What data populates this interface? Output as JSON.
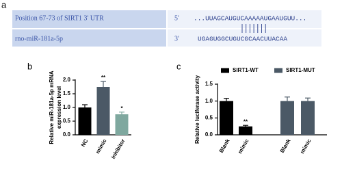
{
  "panel_a": {
    "label": "a",
    "rows": [
      {
        "name": "Position 67-73 of SIRT1 3' UTR",
        "end": "5'",
        "sequence": "...UUAGCAUGUCAAAAAUGAAUGUU..."
      },
      {
        "name": "rno-miR-181a-5p",
        "end": "3'",
        "sequence": "UGAGUGGCUGUCGCAACUUACAA"
      }
    ]
  },
  "chart_data": [
    {
      "type": "bar",
      "panel_label": "b",
      "ylabel": [
        "Relative miR-181a-5p mRNA",
        "expression level"
      ],
      "categories": [
        "NC",
        "mimic",
        "inhibitor"
      ],
      "values": [
        1.0,
        1.75,
        0.75
      ],
      "errors": [
        0.1,
        0.2,
        0.08
      ],
      "colors": [
        "#000000",
        "#4b5966",
        "#7fa89f"
      ],
      "annotations": [
        {
          "text": "**",
          "index": 1
        },
        {
          "text": "*",
          "index": 2
        }
      ],
      "ylim": [
        0,
        2.0
      ],
      "yticks": [
        {
          "value": 0,
          "label": "0.0"
        },
        {
          "value": 0.5,
          "label": "0.5"
        },
        {
          "value": 1.0,
          "label": "1.0"
        },
        {
          "value": 1.5,
          "label": "1.5"
        },
        {
          "value": 2.0,
          "label": "2.0"
        }
      ]
    },
    {
      "type": "bar",
      "panel_label": "c",
      "ylabel": [
        "Relative luciferase activity"
      ],
      "categories": [
        "Blank",
        "mimic",
        "Blank",
        "mimic"
      ],
      "series": [
        {
          "name": "SIRT1-WT",
          "color": "#000000",
          "values": [
            1.0,
            0.25,
            null,
            null
          ],
          "errors": [
            0.08,
            0.03,
            null,
            null
          ]
        },
        {
          "name": "SIRT1-MUT",
          "color": "#4b5966",
          "values": [
            null,
            null,
            1.0,
            1.0
          ],
          "errors": [
            null,
            null,
            0.12,
            0.09
          ]
        }
      ],
      "annotations": [
        {
          "text": "**",
          "index": 1
        }
      ],
      "legend": "top",
      "ylim": [
        0,
        1.5
      ],
      "yticks": [
        {
          "value": 0,
          "label": "0.0"
        },
        {
          "value": 0.5,
          "label": "0.5"
        },
        {
          "value": 1.0,
          "label": "1.0"
        },
        {
          "value": 1.5,
          "label": "1.5"
        }
      ]
    }
  ]
}
